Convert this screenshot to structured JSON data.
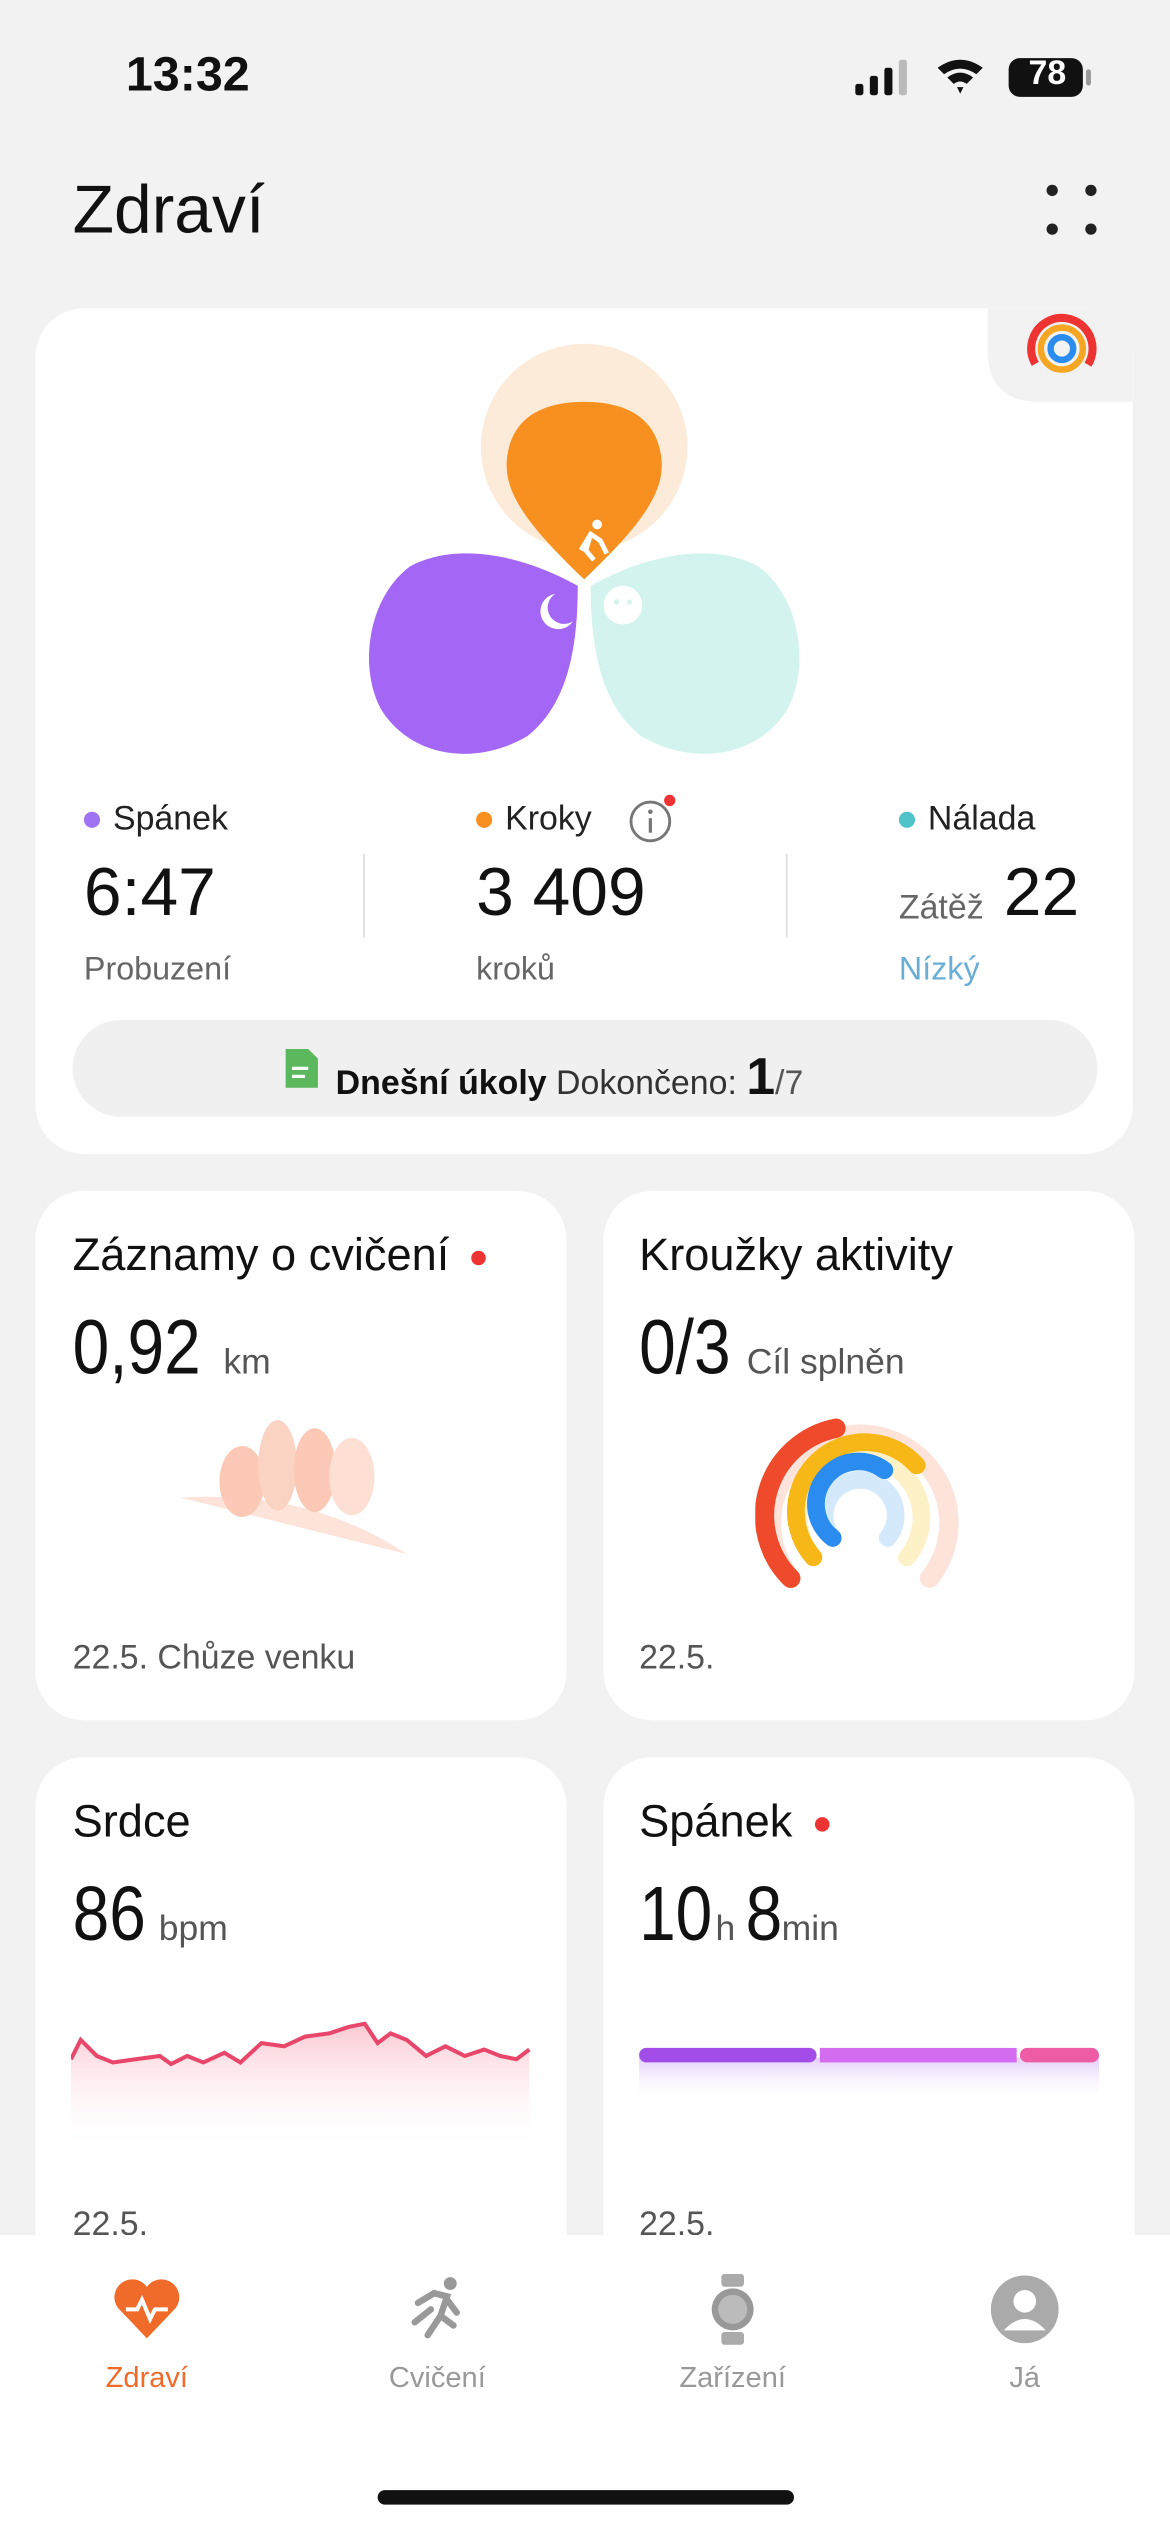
{
  "status_bar": {
    "time": "13:32",
    "battery": "78"
  },
  "header": {
    "title": "Zdraví"
  },
  "summary": {
    "sleep": {
      "label": "Spánek",
      "value": "6:47",
      "sub": "Probuzení"
    },
    "steps": {
      "label": "Kroky",
      "value": "3 409",
      "sub": "kroků"
    },
    "mood": {
      "label": "Nálada",
      "prefix": "Zátěž",
      "value": "22",
      "sub": "Nízký"
    },
    "tasks": {
      "title": "Dnešní úkoly",
      "done_label": "Dokončeno:",
      "done": "1",
      "total": "/7"
    }
  },
  "cards": [
    {
      "title": "Záznamy o cvičení",
      "value": "0,92",
      "unit": "km",
      "footer": "22.5. Chůze venku"
    },
    {
      "title": "Kroužky aktivity",
      "value": "0/3",
      "unit": "Cíl splněn",
      "footer": "22.5."
    },
    {
      "title": "Srdce",
      "value": "86",
      "unit": "bpm",
      "footer": "22.5."
    },
    {
      "title": "Spánek",
      "value": "10",
      "unit": "h",
      "value2": "8",
      "unit2": "min",
      "footer": "22.5."
    }
  ],
  "nav": {
    "tabs": [
      "Zdraví",
      "Cvičení",
      "Zařízení",
      "Já"
    ]
  }
}
